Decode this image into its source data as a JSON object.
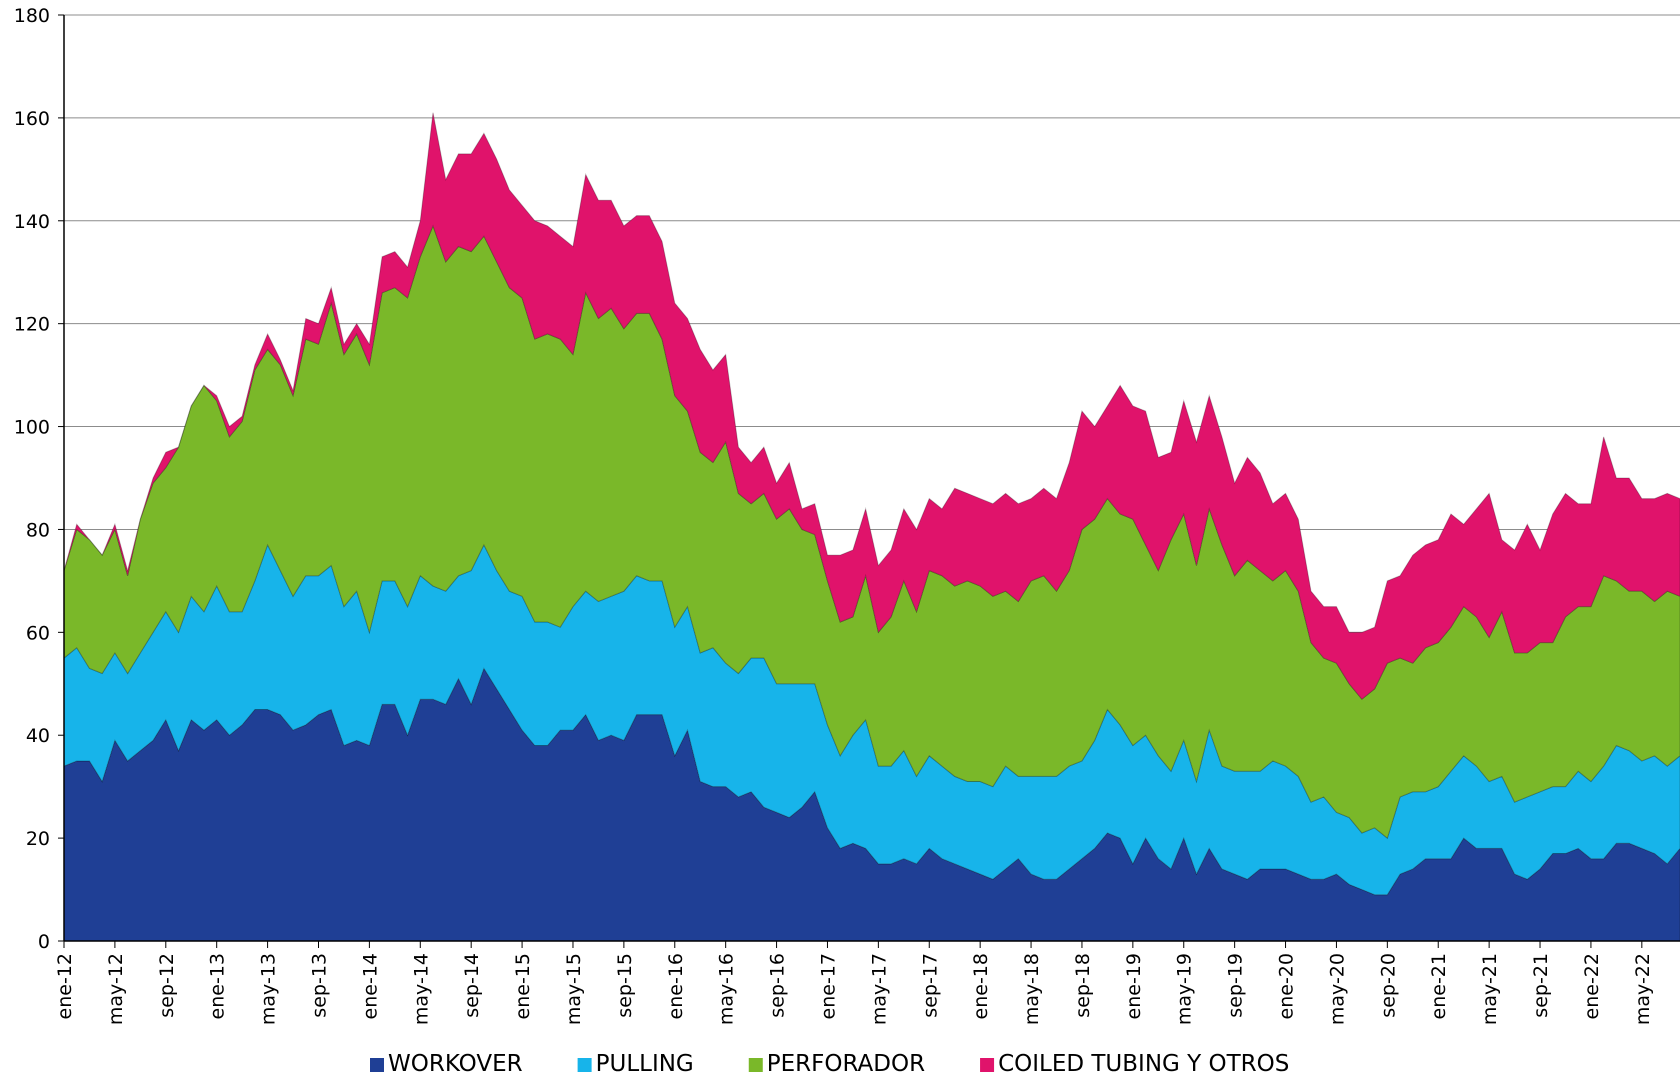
{
  "chart_data": {
    "type": "stacked_area",
    "categories": [
      "ene-12",
      null,
      null,
      null,
      "may-12",
      null,
      null,
      null,
      "sep-12",
      null,
      null,
      null,
      "ene-13",
      null,
      null,
      null,
      "may-13",
      null,
      null,
      null,
      "sep-13",
      null,
      null,
      null,
      "ene-14",
      null,
      null,
      null,
      "may-14",
      null,
      null,
      null,
      "sep-14",
      null,
      null,
      null,
      "ene-15",
      null,
      null,
      null,
      "may-15",
      null,
      null,
      null,
      "sep-15",
      null,
      null,
      null,
      "ene-16",
      null,
      null,
      null,
      "may-16",
      null,
      null,
      null,
      "sep-16",
      null,
      null,
      null,
      "ene-17",
      null,
      null,
      null,
      "may-17",
      null,
      null,
      null,
      "sep-17",
      null,
      null,
      null,
      "ene-18",
      null,
      null,
      null,
      "may-18",
      null,
      null,
      null,
      "sep-18",
      null,
      null,
      null,
      "ene-19",
      null,
      null,
      null,
      "may-19",
      null,
      null,
      null,
      "sep-19",
      null,
      null,
      null,
      "ene-20",
      null,
      null,
      null,
      "may-20",
      null,
      null,
      null,
      "sep-20",
      null,
      null,
      null,
      "ene-21",
      null,
      null,
      null,
      "may-21",
      null,
      null,
      null,
      "sep-21",
      null,
      null,
      null,
      "ene-22",
      null,
      null,
      null,
      "may-22",
      null,
      null,
      null
    ],
    "series": [
      {
        "name": "WORKOVER",
        "color": "#1f3f95",
        "values": [
          34,
          35,
          35,
          31,
          39,
          35,
          37,
          39,
          43,
          37,
          43,
          41,
          43,
          40,
          42,
          45,
          45,
          44,
          41,
          42,
          44,
          45,
          38,
          39,
          38,
          46,
          46,
          40,
          47,
          47,
          46,
          51,
          46,
          53,
          49,
          45,
          41,
          38,
          38,
          41,
          41,
          44,
          39,
          40,
          39,
          44,
          44,
          44,
          36,
          41,
          31,
          30,
          30,
          28,
          29,
          26,
          25,
          24,
          26,
          29,
          22,
          18,
          19,
          18,
          15,
          15,
          16,
          15,
          18,
          16,
          15,
          14,
          13,
          12,
          14,
          16,
          13,
          12,
          12,
          14,
          16,
          18,
          21,
          20,
          15,
          20,
          16,
          14,
          20,
          13,
          18,
          14,
          13,
          12,
          14,
          14,
          14,
          13,
          12,
          12,
          13,
          11,
          10,
          9,
          9,
          13,
          14,
          16,
          16,
          16,
          20,
          18,
          18,
          18,
          13,
          12,
          14,
          17,
          17,
          18,
          16,
          16,
          19,
          19,
          18,
          17,
          15,
          18
        ]
      },
      {
        "name": "PULLING",
        "color": "#17b4ea",
        "values": [
          21,
          22,
          18,
          21,
          17,
          17,
          19,
          21,
          21,
          23,
          24,
          23,
          26,
          24,
          22,
          25,
          32,
          28,
          26,
          29,
          27,
          28,
          27,
          29,
          22,
          24,
          24,
          25,
          24,
          22,
          22,
          20,
          26,
          24,
          23,
          23,
          26,
          24,
          24,
          20,
          24,
          24,
          27,
          27,
          29,
          27,
          26,
          26,
          25,
          24,
          25,
          27,
          24,
          24,
          26,
          29,
          25,
          26,
          24,
          21,
          20,
          18,
          21,
          25,
          19,
          19,
          21,
          17,
          18,
          18,
          17,
          17,
          18,
          18,
          20,
          16,
          19,
          20,
          20,
          20,
          19,
          21,
          24,
          22,
          23,
          20,
          20,
          19,
          19,
          18,
          23,
          20,
          20,
          21,
          19,
          21,
          20,
          19,
          15,
          16,
          12,
          13,
          11,
          13,
          11,
          15,
          15,
          13,
          14,
          17,
          16,
          16,
          13,
          14,
          14,
          16,
          15,
          13,
          13,
          15,
          15,
          18,
          19,
          18,
          17,
          19,
          19,
          18
        ]
      },
      {
        "name": "PERFORADOR",
        "color": "#7ab829",
        "values": [
          17,
          23,
          25,
          23,
          24,
          19,
          26,
          29,
          28,
          36,
          37,
          44,
          36,
          34,
          37,
          41,
          38,
          40,
          39,
          46,
          45,
          51,
          49,
          50,
          52,
          56,
          57,
          60,
          62,
          70,
          64,
          64,
          62,
          60,
          60,
          59,
          58,
          55,
          56,
          56,
          49,
          58,
          55,
          56,
          51,
          51,
          52,
          47,
          45,
          38,
          39,
          36,
          43,
          35,
          30,
          32,
          32,
          34,
          30,
          29,
          28,
          26,
          23,
          28,
          26,
          29,
          33,
          32,
          36,
          37,
          37,
          39,
          38,
          37,
          34,
          34,
          38,
          39,
          36,
          38,
          45,
          43,
          41,
          41,
          44,
          37,
          36,
          45,
          44,
          42,
          43,
          43,
          38,
          41,
          39,
          35,
          38,
          36,
          31,
          27,
          29,
          26,
          26,
          27,
          34,
          27,
          25,
          28,
          28,
          28,
          29,
          29,
          28,
          32,
          29,
          28,
          29,
          28,
          33,
          32,
          34,
          37,
          32,
          31,
          33,
          30,
          34,
          31
        ]
      },
      {
        "name": "COILED TUBING Y OTROS",
        "color": "#e0136b",
        "values": [
          0,
          1,
          0,
          0,
          1,
          1,
          0,
          1,
          3,
          0,
          0,
          0,
          1,
          2,
          1,
          1,
          3,
          1,
          1,
          4,
          4,
          3,
          2,
          2,
          4,
          7,
          7,
          6,
          7,
          22,
          16,
          18,
          19,
          20,
          20,
          19,
          18,
          23,
          21,
          20,
          21,
          23,
          23,
          21,
          20,
          19,
          19,
          19,
          18,
          18,
          20,
          18,
          17,
          9,
          8,
          9,
          7,
          9,
          4,
          6,
          5,
          13,
          13,
          13,
          13,
          13,
          14,
          16,
          14,
          13,
          19,
          17,
          17,
          18,
          19,
          19,
          16,
          17,
          18,
          21,
          23,
          18,
          18,
          25,
          22,
          26,
          22,
          17,
          22,
          24,
          22,
          21,
          18,
          20,
          19,
          15,
          15,
          14,
          10,
          10,
          11,
          10,
          13,
          12,
          16,
          16,
          21,
          20,
          20,
          22,
          16,
          21,
          28,
          14,
          20,
          25,
          18,
          25,
          24,
          20,
          20,
          27,
          20,
          22,
          18,
          20,
          19,
          19
        ]
      }
    ],
    "ylim": [
      0,
      180
    ],
    "yticks": [
      0,
      20,
      40,
      60,
      80,
      100,
      120,
      140,
      160,
      180
    ],
    "grid": true,
    "legend": "bottom"
  }
}
